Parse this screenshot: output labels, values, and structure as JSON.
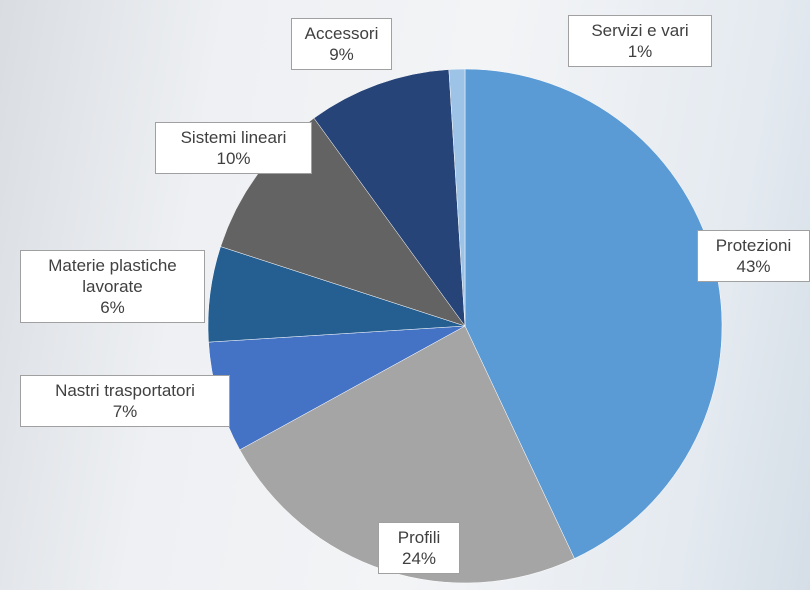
{
  "chart_data": {
    "type": "pie",
    "categories": [
      "Protezioni",
      "Profili",
      "Nastri trasportatori",
      "Materie plastiche lavorate",
      "Sistemi lineari",
      "Accessori",
      "Servizi e vari"
    ],
    "values": [
      43,
      24,
      7,
      6,
      10,
      9,
      1
    ],
    "value_labels": [
      "43%",
      "24%",
      "7%",
      "6%",
      "10%",
      "9%",
      "1%"
    ],
    "colors": [
      "#5b9bd5",
      "#a5a5a5",
      "#4472c4",
      "#255e91",
      "#636363",
      "#264478",
      "#9dc3e6"
    ]
  }
}
